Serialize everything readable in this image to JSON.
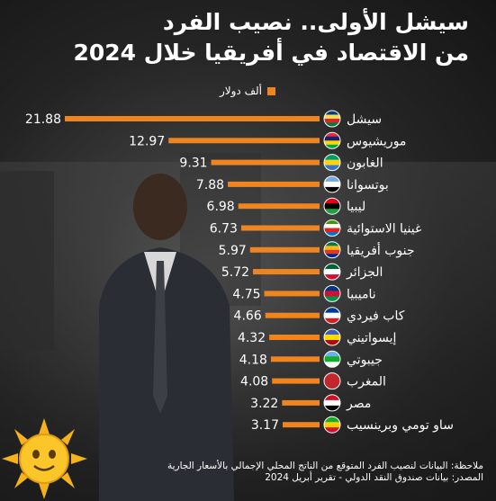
{
  "header": {
    "title_line1": "سيشل الأولى.. نصيب الفرد",
    "title_line2": "من الاقتصاد في أفريقيا خلال 2024"
  },
  "legend": {
    "label": "ألف دولار",
    "color": "#f0841f"
  },
  "footer": {
    "note": "ملاحظة: البيانات لنصيب الفرد المتوقع من الناتج المحلي الإجمالي بالأسعار الجارية",
    "source": "المصدر: بيانات صندوق النقد الدولي - تقرير أبريل 2024"
  },
  "chart_data": {
    "type": "bar",
    "orientation": "horizontal",
    "bar_color": "#f0841f",
    "xlim": [
      0,
      21.88
    ],
    "categories": [
      "سيشل",
      "موريشيوس",
      "الغابون",
      "بوتسوانا",
      "ليبيا",
      "غينيا الاستوائية",
      "جنوب أفريقيا",
      "الجزائر",
      "ناميبيا",
      "كاب فيردي",
      "إيسواتيني",
      "جيبوتي",
      "المغرب",
      "مصر",
      "ساو تومي وبرينسيب"
    ],
    "values": [
      21.88,
      12.97,
      9.31,
      7.88,
      6.98,
      6.73,
      5.97,
      5.72,
      4.75,
      4.66,
      4.32,
      4.18,
      4.08,
      3.22,
      3.17
    ],
    "value_labels": [
      "21.88",
      "12.97",
      "9.31",
      "7.88",
      "6.98",
      "6.73",
      "5.97",
      "5.72",
      "4.75",
      "4.66",
      "4.32",
      "4.18",
      "4.08",
      "3.22",
      "3.17"
    ],
    "flags": [
      "seychelles-flag",
      "mauritius-flag",
      "gabon-flag",
      "botswana-flag",
      "libya-flag",
      "equatorial-guinea-flag",
      "south-africa-flag",
      "algeria-flag",
      "namibia-flag",
      "cape-verde-flag",
      "eswatini-flag",
      "djibouti-flag",
      "morocco-flag",
      "egypt-flag",
      "sao-tome-flag"
    ]
  }
}
